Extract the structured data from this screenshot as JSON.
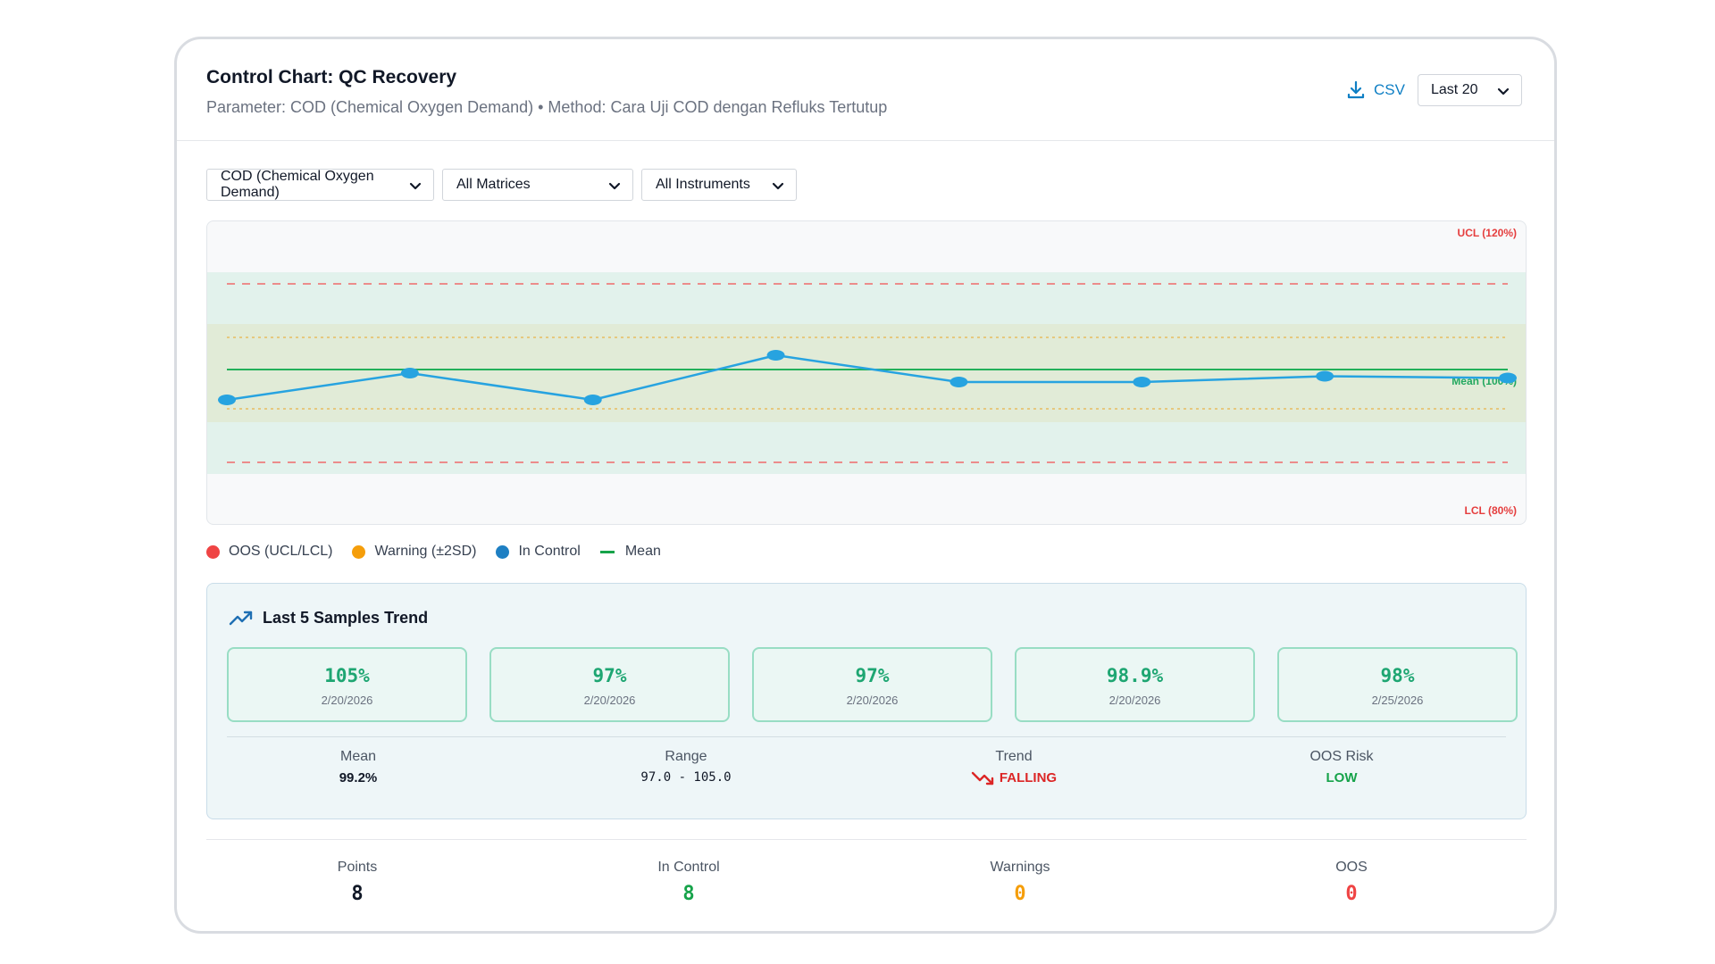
{
  "header": {
    "title": "Control Chart: QC Recovery",
    "subtitle": "Parameter: COD (Chemical Oxygen Demand) • Method: Cara Uji COD dengan Refluks Tertutup",
    "csv_label": "CSV",
    "range_select": "Last 20"
  },
  "filters": {
    "parameter": "COD (Chemical Oxygen Demand)",
    "matrix": "All Matrices",
    "instrument": "All Instruments"
  },
  "chart_data": {
    "type": "line",
    "series": [
      {
        "values": [
          94,
          100,
          94,
          104,
          98,
          98,
          99.3,
          98.9
        ]
      }
    ],
    "limits": {
      "ucl": 120,
      "lcl": 80,
      "mean": 100,
      "warning_upper": 110,
      "warning_lower": 90
    },
    "annotations": {
      "ucl_label": "UCL (120%)",
      "lcl_label": "LCL (80%)",
      "mean_label": "Mean (100%)"
    },
    "colors": {
      "line": "#27a3e0",
      "mean": "#23b05a",
      "limit": "#ef6b6b",
      "warning": "#e9b24a",
      "oos_band": "#e2f2ec",
      "warn_band": "#e1ebd7"
    }
  },
  "legend": [
    {
      "label": "OOS (UCL/LCL)",
      "color": "#ef4444",
      "shape": "dot"
    },
    {
      "label": "Warning (±2SD)",
      "color": "#f59e0b",
      "shape": "dot"
    },
    {
      "label": "In Control",
      "color": "#1e7fc3",
      "shape": "dot"
    },
    {
      "label": "Mean",
      "color": "#16a34a",
      "shape": "line"
    }
  ],
  "trend": {
    "title": "Last 5 Samples Trend",
    "icon": "trending-up-icon",
    "samples": [
      {
        "value": "105%",
        "date": "2/20/2026"
      },
      {
        "value": "97%",
        "date": "2/20/2026"
      },
      {
        "value": "97%",
        "date": "2/20/2026"
      },
      {
        "value": "98.9%",
        "date": "2/20/2026"
      },
      {
        "value": "98%",
        "date": "2/25/2026"
      }
    ],
    "stats": {
      "mean_label": "Mean",
      "mean_value": "99.2%",
      "range_label": "Range",
      "range_value": "97.0 - 105.0",
      "trend_label": "Trend",
      "trend_value": "FALLING",
      "risk_label": "OOS Risk",
      "risk_value": "LOW"
    }
  },
  "summary": {
    "points_label": "Points",
    "points_value": "8",
    "in_control_label": "In Control",
    "in_control_value": "8",
    "warnings_label": "Warnings",
    "warnings_value": "0",
    "oos_label": "OOS",
    "oos_value": "0"
  }
}
